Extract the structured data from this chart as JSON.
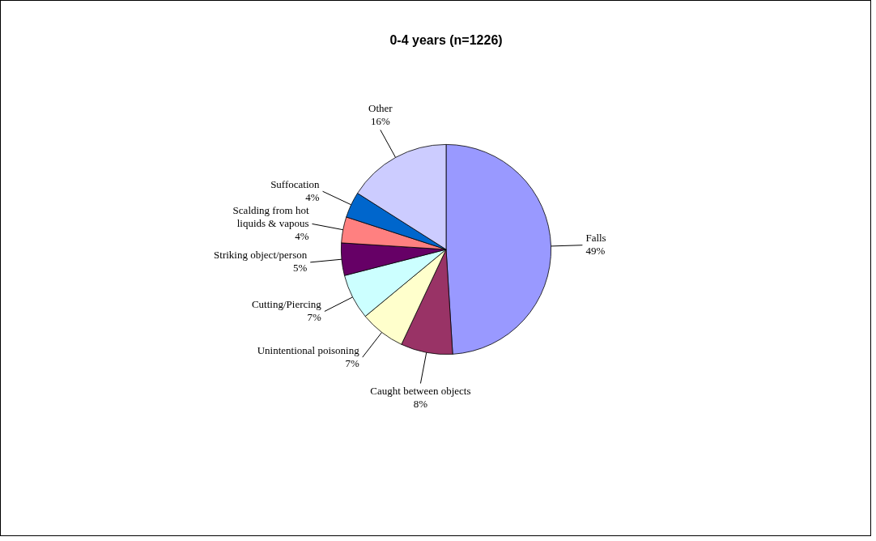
{
  "chart_data": {
    "type": "pie",
    "title": "0-4 years (n=1226)",
    "categories": [
      "Falls",
      "Caught between objects",
      "Unintentional poisoning",
      "Cutting/Piercing",
      "Striking object/person",
      "Scalding from hot liquids & vapous",
      "Suffocation",
      "Other"
    ],
    "values": [
      49,
      8,
      7,
      7,
      5,
      4,
      4,
      16
    ],
    "colors": [
      "#9999ff",
      "#993366",
      "#ffffcc",
      "#ccffff",
      "#660066",
      "#ff8080",
      "#0066cc",
      "#ccccff"
    ],
    "value_labels": [
      "49%",
      "8%",
      "7%",
      "7%",
      "5%",
      "4%",
      "4%",
      "16%"
    ],
    "legend": false
  }
}
